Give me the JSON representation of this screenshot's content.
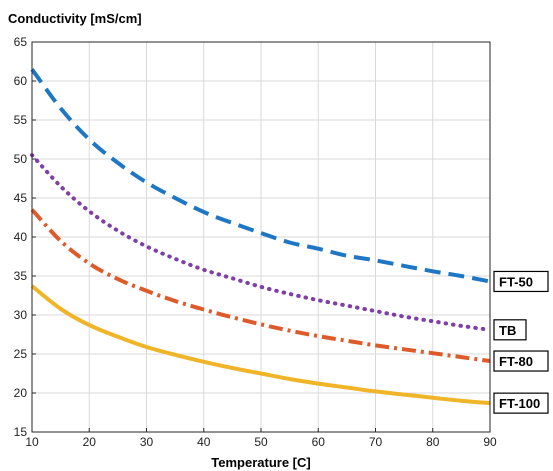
{
  "chart_data": {
    "type": "line",
    "ylabel": "Conductivity [mS/cm]",
    "xlabel": "Temperature [C]",
    "xlim": [
      10,
      90
    ],
    "ylim": [
      15,
      65
    ],
    "xticks": [
      10,
      20,
      30,
      40,
      50,
      60,
      70,
      80,
      90
    ],
    "yticks": [
      15,
      20,
      25,
      30,
      35,
      40,
      45,
      50,
      55,
      60,
      65
    ],
    "grid": true,
    "legend_placement": "right, labels at line ends",
    "series": [
      {
        "name": "FT-50",
        "color": "#1f77c4",
        "style": "dashed",
        "x": [
          10,
          15,
          20,
          25,
          30,
          35,
          40,
          45,
          50,
          55,
          60,
          65,
          70,
          75,
          80,
          85,
          90
        ],
        "y": [
          61.5,
          56.5,
          52.5,
          49.5,
          47.0,
          45.0,
          43.2,
          41.8,
          40.5,
          39.3,
          38.5,
          37.6,
          37.0,
          36.3,
          35.6,
          35.0,
          34.3
        ]
      },
      {
        "name": "TB",
        "color": "#7e3fa8",
        "style": "dotted",
        "x": [
          10,
          15,
          20,
          25,
          30,
          35,
          40,
          45,
          50,
          55,
          60,
          65,
          70,
          75,
          80,
          85,
          90
        ],
        "y": [
          50.5,
          46.5,
          43.3,
          40.8,
          38.8,
          37.2,
          35.8,
          34.7,
          33.6,
          32.7,
          31.9,
          31.2,
          30.5,
          29.8,
          29.2,
          28.6,
          28.1
        ]
      },
      {
        "name": "FT-80",
        "color": "#dd5a2b",
        "style": "dash-dot",
        "x": [
          10,
          15,
          20,
          25,
          30,
          35,
          40,
          45,
          50,
          55,
          60,
          65,
          70,
          75,
          80,
          85,
          90
        ],
        "y": [
          43.5,
          39.5,
          36.6,
          34.6,
          33.1,
          31.8,
          30.7,
          29.7,
          28.8,
          28.0,
          27.3,
          26.7,
          26.1,
          25.6,
          25.1,
          24.6,
          24.1
        ]
      },
      {
        "name": "FT-100",
        "color": "#f0b429",
        "style": "solid",
        "x": [
          10,
          15,
          20,
          25,
          30,
          35,
          40,
          45,
          50,
          55,
          60,
          65,
          70,
          75,
          80,
          85,
          90
        ],
        "y": [
          33.7,
          30.8,
          28.7,
          27.2,
          25.9,
          24.9,
          24.0,
          23.2,
          22.5,
          21.8,
          21.2,
          20.7,
          20.2,
          19.8,
          19.4,
          19.0,
          18.7
        ]
      }
    ]
  }
}
